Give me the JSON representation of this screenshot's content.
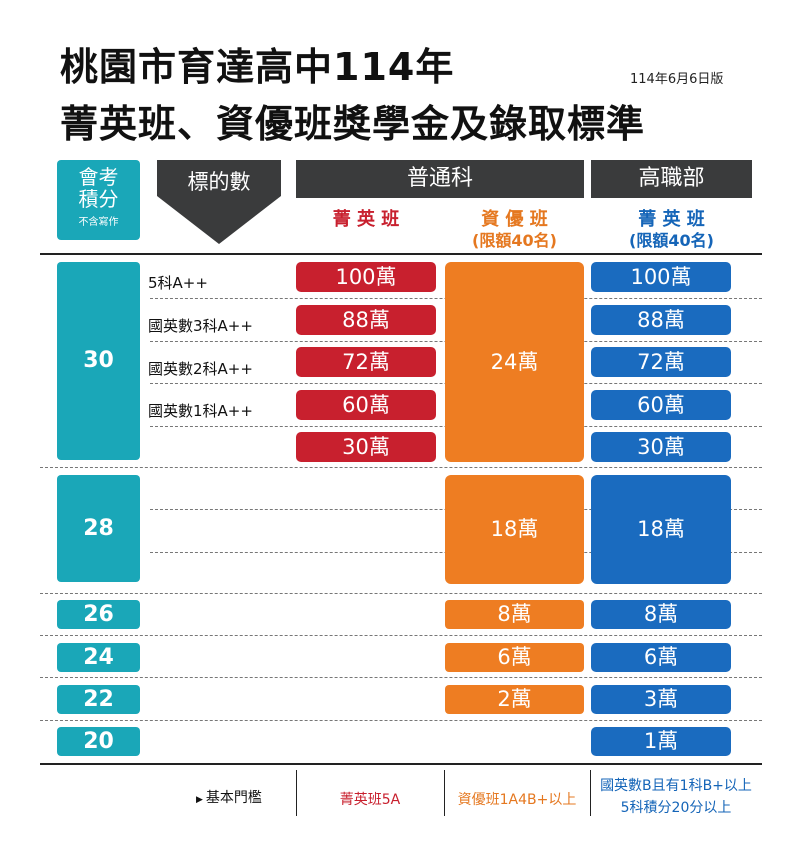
{
  "title": {
    "line1": "桃園市育達高中114年",
    "line2": "菁英班、資優班獎學金及錄取標準",
    "version": "114年6月6日版"
  },
  "header": {
    "score_label_1": "會考",
    "score_label_2": "積分",
    "score_note": "不含寫作",
    "target_label": "標的數",
    "general_dept": "普通科",
    "vocational_dept": "高職部",
    "elite_class": "菁 英 班",
    "gifted_class": "資 優 班",
    "gifted_quota": "(限額40名)",
    "voc_elite_class": "菁 英 班",
    "voc_elite_quota": "(限額40名)"
  },
  "rows": {
    "score_30": "30",
    "score_28": "28",
    "score_26": "26",
    "score_24": "24",
    "score_22": "22",
    "score_20": "20",
    "targets": [
      "5科A++",
      "國英數3科A++",
      "國英數2科A++",
      "國英數1科A++"
    ],
    "elite_amounts": [
      "100萬",
      "88萬",
      "72萬",
      "60萬",
      "30萬"
    ],
    "gifted_30": "24萬",
    "gifted_28": "18萬",
    "gifted_26": "8萬",
    "gifted_24": "6萬",
    "gifted_22": "2萬",
    "voc_amounts_30": [
      "100萬",
      "88萬",
      "72萬",
      "60萬",
      "30萬"
    ],
    "voc_28": "18萬",
    "voc_26": "8萬",
    "voc_24": "6萬",
    "voc_22": "3萬",
    "voc_20": "1萬"
  },
  "footer": {
    "threshold_label": "基本門檻",
    "elite_threshold": "菁英班5A",
    "gifted_threshold": "資優班1A4B+以上",
    "voc_threshold_1": "國英數B且有1科B+以上",
    "voc_threshold_2": "5科積分20分以上"
  },
  "colors": {
    "teal": "#1aa7b8",
    "red": "#c8202e",
    "orange": "#ee7d22",
    "blue": "#1a6bbf",
    "dark": "#3a3b3c"
  }
}
